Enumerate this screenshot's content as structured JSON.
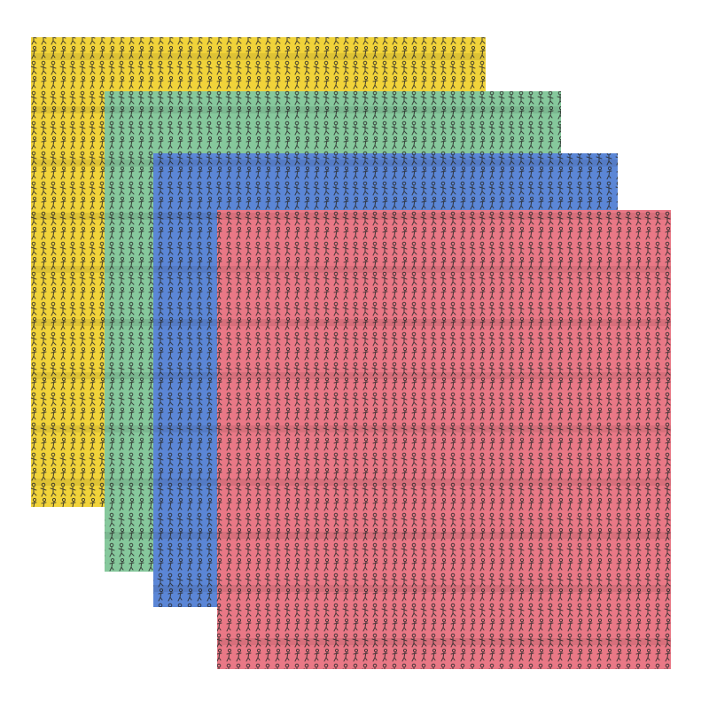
{
  "napkins": [
    {
      "color": "#f1d33a"
    },
    {
      "color": "#86c89c"
    },
    {
      "color": "#5b86d6"
    },
    {
      "color": "#e97886"
    }
  ]
}
